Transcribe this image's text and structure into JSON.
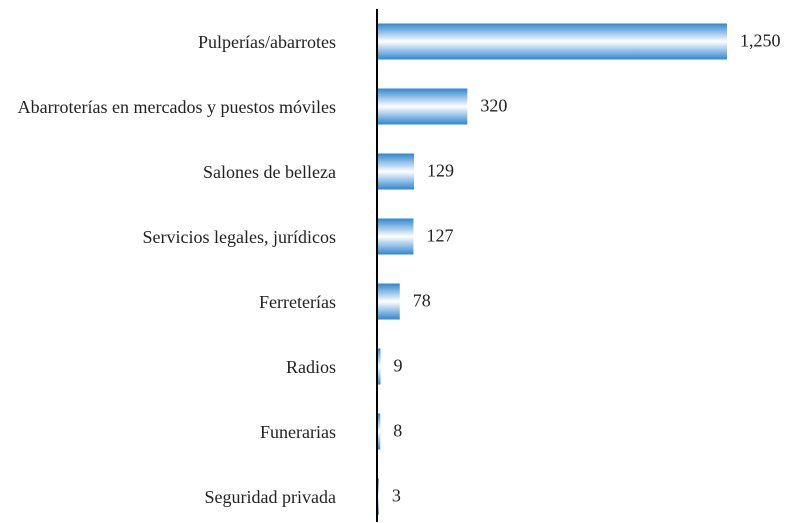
{
  "chart_data": {
    "type": "bar",
    "orientation": "horizontal",
    "color": "#2f86d0",
    "categories": [
      "Pulperías/abarrotes",
      "Abarroterías en mercados y puestos móviles",
      "Salones de belleza",
      "Servicios legales, jurídicos",
      "Ferreterías",
      "Radios",
      "Funerarias",
      "Seguridad privada"
    ],
    "values": [
      1250,
      320,
      129,
      127,
      78,
      9,
      8,
      3
    ],
    "value_labels": [
      "1,250",
      "320",
      "129",
      "127",
      "78",
      "9",
      "8",
      "3"
    ]
  }
}
